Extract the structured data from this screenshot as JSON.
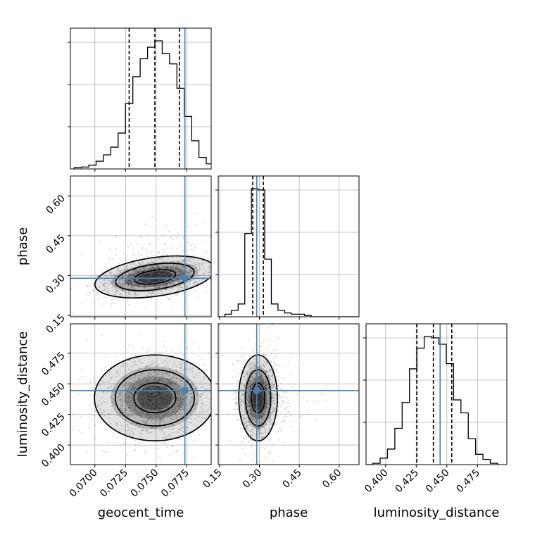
{
  "chart_data": {
    "type": "corner",
    "parameters": [
      "geocent_time",
      "phase",
      "luminosity_distance"
    ],
    "truths": {
      "geocent_time": 0.07735,
      "phase": 0.29,
      "luminosity_distance": 0.4445
    },
    "quantiles": {
      "geocent_time": [
        0.0728,
        0.0749,
        0.0769
      ],
      "phase": [
        0.275,
        0.29,
        0.315
      ],
      "luminosity_distance": [
        0.4255,
        0.439,
        0.454
      ]
    },
    "axes": {
      "geocent_time": {
        "range": [
          0.068,
          0.0795
        ],
        "ticks": [
          0.07,
          0.0725,
          0.075,
          0.0775
        ],
        "tick_labels": [
          "0.0700",
          "0.0725",
          "0.0750",
          "0.0775"
        ]
      },
      "phase": {
        "range": [
          0.145,
          0.675
        ],
        "ticks": [
          0.15,
          0.3,
          0.45,
          0.6
        ],
        "tick_labels": [
          "0.15",
          "0.30",
          "0.45",
          "0.60"
        ]
      },
      "luminosity_distance": {
        "range": [
          0.384,
          0.499
        ],
        "ticks": [
          0.4,
          0.425,
          0.45,
          0.475
        ],
        "tick_labels": [
          "0.400",
          "0.425",
          "0.450",
          "0.475"
        ]
      }
    },
    "histograms": {
      "geocent_time": {
        "edges": [
          0.0683,
          0.0689,
          0.0695,
          0.0701,
          0.0707,
          0.0713,
          0.0719,
          0.0725,
          0.0731,
          0.0737,
          0.0743,
          0.0749,
          0.0755,
          0.0761,
          0.0767,
          0.0773,
          0.0779,
          0.0785,
          0.0791,
          0.0797
        ],
        "counts": [
          0.01,
          0.015,
          0.03,
          0.06,
          0.11,
          0.17,
          0.28,
          0.51,
          0.72,
          0.86,
          0.95,
          1.0,
          0.9,
          0.82,
          0.63,
          0.41,
          0.22,
          0.09,
          0.04
        ]
      },
      "phase": {
        "edges": [
          0.145,
          0.17,
          0.195,
          0.22,
          0.245,
          0.27,
          0.295,
          0.32,
          0.345,
          0.37,
          0.395,
          0.42,
          0.445,
          0.47,
          0.495,
          0.52,
          0.545,
          0.57,
          0.595,
          0.62,
          0.645,
          0.67
        ],
        "counts": [
          0.0,
          0.02,
          0.05,
          0.1,
          0.65,
          1.0,
          0.99,
          0.45,
          0.1,
          0.05,
          0.03,
          0.02,
          0.02,
          0.01,
          0.0,
          0.0,
          0.0,
          0.0,
          0.0,
          0.0,
          0.0
        ]
      },
      "luminosity_distance": {
        "edges": [
          0.3835,
          0.3895,
          0.3955,
          0.4015,
          0.4075,
          0.4135,
          0.4195,
          0.4255,
          0.4315,
          0.4375,
          0.4435,
          0.4495,
          0.4555,
          0.4615,
          0.4675,
          0.4735,
          0.4795,
          0.4855,
          0.4915
        ],
        "counts": [
          0.0,
          0.01,
          0.05,
          0.12,
          0.28,
          0.48,
          0.74,
          0.9,
          0.99,
          0.98,
          0.93,
          0.78,
          0.5,
          0.4,
          0.2,
          0.08,
          0.04,
          0.01
        ]
      }
    },
    "posterior_peaks": {
      "geocent_time": 0.0749,
      "phase": 0.295,
      "luminosity_distance": 0.4385
    },
    "posterior_widths": {
      "geocent_time": 0.0019,
      "phase": 0.028,
      "luminosity_distance": 0.0135
    },
    "contour_levels": [
      0.39,
      0.86,
      0.99
    ],
    "colors": {
      "histogram": "#000000",
      "truth": "#4682b4",
      "quantile": "#000000",
      "grid": "#b0b0b0",
      "scatter": "#555555"
    },
    "grid": true
  }
}
